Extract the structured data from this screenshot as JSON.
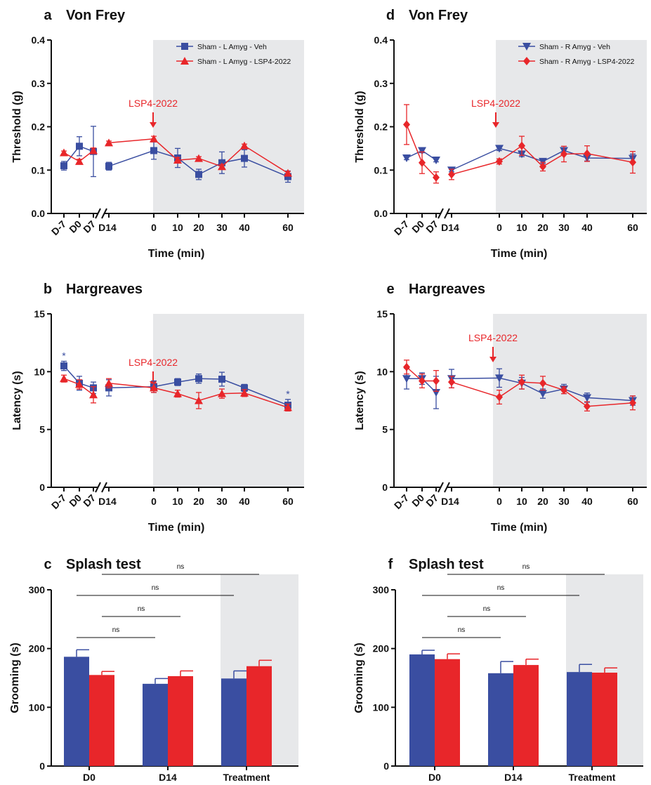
{
  "colors": {
    "veh": "#3a4ea1",
    "lsp": "#e8262a",
    "shade": "#e7e8ea"
  },
  "chart_data": [
    {
      "id": "a",
      "type": "line",
      "panel_label": "a",
      "title": "Von Frey",
      "xlabel": "Time (min)",
      "ylabel": "Threshold (g)",
      "ylim": [
        0,
        0.4
      ],
      "yticks": [
        "0.0",
        "0.1",
        "0.2",
        "0.3",
        "0.4"
      ],
      "x_tick_labels": [
        "D-7",
        "D0",
        "D7",
        "D14",
        "0",
        "10",
        "20",
        "30",
        "40",
        "60"
      ],
      "grid": false,
      "legend_position": "top-right",
      "annotation": "LSP4-2022",
      "series": [
        {
          "name": "Sham - L Amyg - Veh",
          "marker": "square",
          "values": [
            0.11,
            0.155,
            0.143,
            0.109,
            0.145,
            0.128,
            0.09,
            0.117,
            0.127,
            0.085
          ],
          "errors": [
            0.01,
            0.022,
            0.058,
            0.009,
            0.02,
            0.022,
            0.012,
            0.025,
            0.02,
            0.013
          ]
        },
        {
          "name": "Sham - L Amyg - LSP4-2022",
          "marker": "triangle-up",
          "values": [
            0.14,
            0.12,
            0.145,
            0.163,
            0.172,
            0.123,
            0.127,
            0.108,
            0.156,
            0.093
          ],
          "errors": [
            0.004,
            0.005,
            0.006,
            0.004,
            0.006,
            0.006,
            0.004,
            0.005,
            0.004,
            0.004
          ]
        }
      ]
    },
    {
      "id": "d",
      "type": "line",
      "panel_label": "d",
      "title": "Von Frey",
      "xlabel": "Time (min)",
      "ylabel": "Threshold (g)",
      "ylim": [
        0,
        0.4
      ],
      "yticks": [
        "0.0",
        "0.1",
        "0.2",
        "0.3",
        "0.4"
      ],
      "x_tick_labels": [
        "D-7",
        "D0",
        "D7",
        "D14",
        "0",
        "10",
        "20",
        "30",
        "40",
        "60"
      ],
      "grid": false,
      "legend_position": "top-right",
      "annotation": "LSP4-2022",
      "series": [
        {
          "name": "Sham - R Amyg - Veh",
          "marker": "triangle-down",
          "values": [
            0.128,
            0.145,
            0.123,
            0.1,
            0.15,
            0.137,
            0.12,
            0.145,
            0.128,
            0.127
          ],
          "errors": [
            0.004,
            0.005,
            0.004,
            0.004,
            0.005,
            0.006,
            0.005,
            0.006,
            0.007,
            0.01
          ]
        },
        {
          "name": "Sham - R Amyg - LSP4-2022",
          "marker": "diamond",
          "values": [
            0.205,
            0.117,
            0.083,
            0.09,
            0.12,
            0.156,
            0.108,
            0.137,
            0.138,
            0.118
          ],
          "errors": [
            0.046,
            0.025,
            0.013,
            0.012,
            0.006,
            0.022,
            0.01,
            0.018,
            0.018,
            0.025
          ]
        }
      ]
    },
    {
      "id": "b",
      "type": "line",
      "panel_label": "b",
      "title": "Hargreaves",
      "xlabel": "Time (min)",
      "ylabel": "Latency (s)",
      "ylim": [
        0,
        15
      ],
      "yticks": [
        "0",
        "5",
        "10",
        "15"
      ],
      "x_tick_labels": [
        "D-7",
        "D0",
        "D7",
        "D14",
        "0",
        "10",
        "20",
        "30",
        "40",
        "60"
      ],
      "grid": false,
      "annotation": "LSP4-2022",
      "significance_markers": [
        {
          "index": 0,
          "label": "*"
        },
        {
          "index": 9,
          "label": "*"
        }
      ],
      "series": [
        {
          "name": "Sham - L Amyg - Veh",
          "marker": "square",
          "values": [
            10.5,
            9.0,
            8.6,
            8.6,
            8.7,
            9.1,
            9.4,
            9.35,
            8.6,
            7.1
          ],
          "errors": [
            0.4,
            0.6,
            0.5,
            0.7,
            0.5,
            0.3,
            0.4,
            0.6,
            0.3,
            0.5
          ]
        },
        {
          "name": "Sham - L Amyg - LSP4-2022",
          "marker": "triangle-up",
          "values": [
            9.4,
            8.9,
            8.0,
            9.0,
            8.6,
            8.1,
            7.5,
            8.1,
            8.15,
            6.9
          ],
          "errors": [
            0.3,
            0.4,
            0.7,
            0.4,
            0.4,
            0.3,
            0.7,
            0.4,
            0.3,
            0.3
          ]
        }
      ]
    },
    {
      "id": "e",
      "type": "line",
      "panel_label": "e",
      "title": "Hargreaves",
      "xlabel": "Time (min)",
      "ylabel": "Latency (s)",
      "ylim": [
        0,
        15
      ],
      "yticks": [
        "0",
        "5",
        "10",
        "15"
      ],
      "x_tick_labels": [
        "D-7",
        "D0",
        "D7",
        "D14",
        "0",
        "10",
        "20",
        "30",
        "40",
        "60"
      ],
      "grid": false,
      "annotation": "LSP4-2022",
      "series": [
        {
          "name": "Sham - R Amyg - Veh",
          "marker": "triangle-down",
          "values": [
            9.4,
            9.4,
            8.2,
            9.4,
            9.45,
            9.0,
            8.1,
            8.5,
            7.75,
            7.5
          ],
          "errors": [
            0.9,
            0.5,
            1.4,
            0.8,
            0.8,
            0.5,
            0.4,
            0.4,
            0.4,
            0.4
          ]
        },
        {
          "name": "Sham - R Amyg - LSP4-2022",
          "marker": "diamond",
          "values": [
            10.4,
            9.2,
            9.2,
            9.1,
            7.8,
            9.1,
            9.0,
            8.4,
            7.0,
            7.3
          ],
          "errors": [
            0.6,
            0.6,
            0.9,
            0.5,
            0.6,
            0.6,
            0.6,
            0.3,
            0.4,
            0.6
          ]
        }
      ]
    },
    {
      "id": "c",
      "type": "bar",
      "panel_label": "c",
      "title": "Splash test",
      "xlabel": "",
      "ylabel": "Grooming (s)",
      "ylim": [
        0,
        300
      ],
      "yticks": [
        "0",
        "100",
        "200",
        "300"
      ],
      "categories": [
        "D0",
        "D14",
        "Treatment"
      ],
      "grid": false,
      "series": [
        {
          "name": "Sham - L Amyg - Veh",
          "values": [
            186,
            140,
            149
          ],
          "errors": [
            12,
            9,
            13
          ]
        },
        {
          "name": "Sham - L Amyg - LSP4-2022",
          "values": [
            155,
            153,
            170
          ],
          "errors": [
            6,
            9,
            10
          ]
        }
      ],
      "comparisons": [
        {
          "from": [
            0,
            0
          ],
          "to": [
            1,
            0
          ],
          "label": "ns"
        },
        {
          "from": [
            0,
            1
          ],
          "to": [
            1,
            1
          ],
          "label": "ns"
        },
        {
          "from": [
            0,
            0
          ],
          "to": [
            2,
            0
          ],
          "label": "ns"
        },
        {
          "from": [
            0,
            1
          ],
          "to": [
            2,
            1
          ],
          "label": "ns"
        }
      ]
    },
    {
      "id": "f",
      "type": "bar",
      "panel_label": "f",
      "title": "Splash test",
      "xlabel": "",
      "ylabel": "Grooming (s)",
      "ylim": [
        0,
        300
      ],
      "yticks": [
        "0",
        "100",
        "200",
        "300"
      ],
      "categories": [
        "D0",
        "D14",
        "Treatment"
      ],
      "grid": false,
      "series": [
        {
          "name": "Sham - R Amyg - Veh",
          "values": [
            190,
            158,
            160
          ],
          "errors": [
            7,
            20,
            13
          ]
        },
        {
          "name": "Sham - R Amyg - LSP4-2022",
          "values": [
            182,
            172,
            159
          ],
          "errors": [
            9,
            10,
            8
          ]
        }
      ],
      "comparisons": [
        {
          "from": [
            0,
            0
          ],
          "to": [
            1,
            0
          ],
          "label": "ns"
        },
        {
          "from": [
            0,
            1
          ],
          "to": [
            1,
            1
          ],
          "label": "ns"
        },
        {
          "from": [
            0,
            0
          ],
          "to": [
            2,
            0
          ],
          "label": "ns"
        },
        {
          "from": [
            0,
            1
          ],
          "to": [
            2,
            1
          ],
          "label": "ns"
        }
      ]
    }
  ]
}
